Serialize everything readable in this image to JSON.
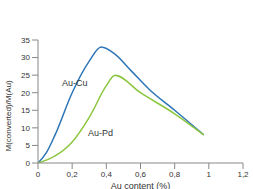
{
  "chart_data": {
    "type": "line",
    "x_label": "Au content (%)",
    "y_label": "M(converted)/M(Au)",
    "xlim": [
      0,
      1.2
    ],
    "xticks": [
      0,
      {
        "value": 0.2,
        "label": "0,2"
      },
      {
        "value": 0.4,
        "label": "0,4"
      },
      {
        "value": 0.6,
        "label": "0,6"
      },
      {
        "value": 0.8,
        "label": "0,8"
      },
      1,
      {
        "value": 1.2,
        "label": "1,2"
      }
    ],
    "ylim": [
      0,
      35
    ],
    "yticks": [
      0,
      5,
      10,
      15,
      20,
      25,
      30,
      35
    ],
    "grid": false,
    "series": [
      {
        "name": "Au-Cu",
        "color": "#2e75b6",
        "x": [
          0,
          0.05,
          0.1,
          0.2,
          0.3,
          0.37,
          0.45,
          0.55,
          0.65,
          0.8,
          0.97
        ],
        "values": [
          0,
          3,
          8,
          20,
          29,
          33,
          31,
          26,
          21,
          15,
          8
        ]
      },
      {
        "name": "Au-Pd",
        "color": "#8cc63f",
        "x": [
          0,
          0.1,
          0.2,
          0.3,
          0.4,
          0.45,
          0.6,
          0.8,
          0.97
        ],
        "values": [
          0,
          2,
          6,
          13,
          22,
          25,
          20,
          14,
          8
        ]
      }
    ]
  }
}
